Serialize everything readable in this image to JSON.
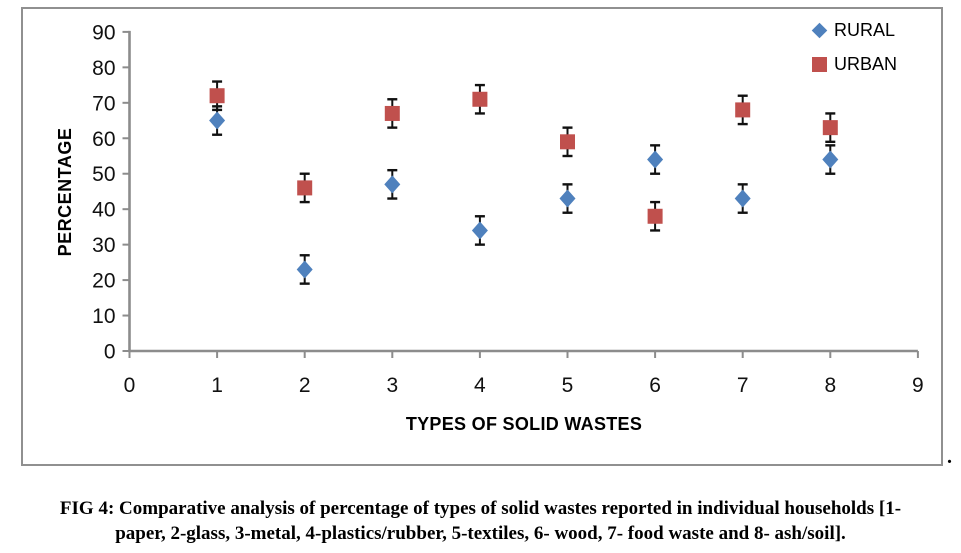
{
  "trailing_period": ".",
  "caption": {
    "line1": "FIG 4: Comparative analysis of percentage of types of solid wastes reported in individual households [1-",
    "line2": "paper, 2-glass, 3-metal, 4-plastics/rubber, 5-textiles, 6- wood, 7- food waste and 8- ash/soil]."
  },
  "chart_data": {
    "type": "scatter",
    "x": [
      1,
      2,
      3,
      4,
      5,
      6,
      7,
      8
    ],
    "series": [
      {
        "name": "RURAL",
        "marker": "diamond",
        "color": "#4F81BD",
        "values": [
          65,
          23,
          47,
          34,
          43,
          54,
          43,
          54
        ],
        "error": [
          4,
          4,
          4,
          4,
          4,
          4,
          4,
          4
        ]
      },
      {
        "name": "URBAN",
        "marker": "square",
        "color": "#C0504D",
        "values": [
          72,
          46,
          67,
          71,
          59,
          38,
          68,
          63
        ],
        "error": [
          4,
          4,
          4,
          4,
          4,
          4,
          4,
          4
        ]
      }
    ],
    "title": "",
    "xlabel": "TYPES OF SOLID WASTES",
    "ylabel": "PERCENTAGE",
    "xlim": [
      0,
      9
    ],
    "ylim": [
      0,
      90
    ],
    "xticks": [
      0,
      1,
      2,
      3,
      4,
      5,
      6,
      7,
      8,
      9
    ],
    "yticks": [
      0,
      10,
      20,
      30,
      40,
      50,
      60,
      70,
      80,
      90
    ],
    "grid": false,
    "legend_position": "top-right",
    "axis_color": "#8C8C8C",
    "error_bar_color": "#111111"
  }
}
